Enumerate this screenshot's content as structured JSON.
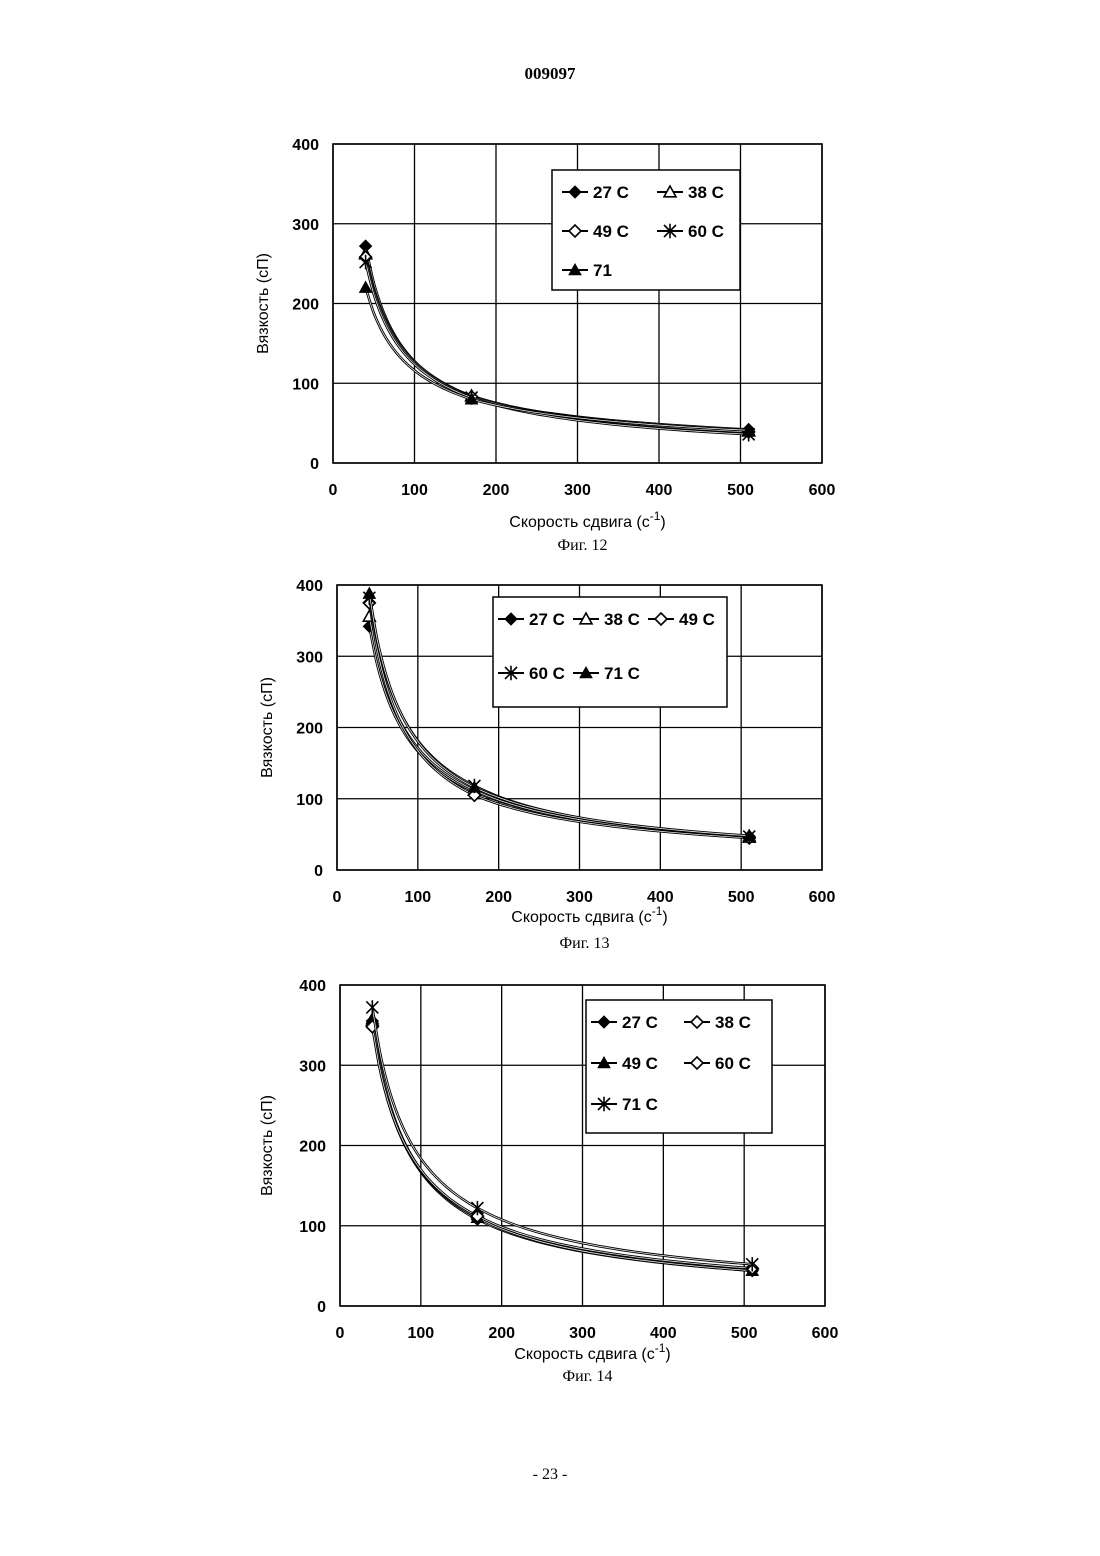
{
  "page": {
    "header": "009097",
    "footer": "- 23 -"
  },
  "chart_data": [
    {
      "type": "line",
      "figure_label": "Фиг. 12",
      "xlabel": "Скорость сдвига (с",
      "xlabel_sup": "-1",
      "xlabel_close": ")",
      "ylabel": "Вязкость (сП)",
      "xlim": [
        0,
        600
      ],
      "ylim": [
        0,
        400
      ],
      "xticks": [
        0,
        100,
        200,
        300,
        400,
        500,
        600
      ],
      "yticks": [
        0,
        100,
        200,
        300,
        400
      ],
      "grid": true,
      "legend_position": "top-right",
      "x": [
        40,
        170,
        510
      ],
      "series": [
        {
          "name": "27 C",
          "marker": "diamond-filled",
          "values": [
            272,
            82,
            42
          ]
        },
        {
          "name": "38 C",
          "marker": "triangle-open",
          "values": [
            262,
            84,
            40
          ]
        },
        {
          "name": "49 C",
          "marker": "diamond-open",
          "values": [
            258,
            83,
            39
          ]
        },
        {
          "name": "60 C",
          "marker": "asterisk",
          "values": [
            252,
            82,
            36
          ]
        },
        {
          "name": "71",
          "marker": "triangle-filled",
          "values": [
            220,
            80,
            41
          ]
        }
      ]
    },
    {
      "type": "line",
      "figure_label": "Фиг. 13",
      "xlabel": "Скорость сдвига (с",
      "xlabel_sup": "-1",
      "xlabel_close": ")",
      "ylabel": "Вязкость (сП)",
      "xlim": [
        0,
        600
      ],
      "ylim": [
        0,
        400
      ],
      "xticks": [
        0,
        100,
        200,
        300,
        400,
        500,
        600
      ],
      "yticks": [
        0,
        100,
        200,
        300,
        400
      ],
      "grid": true,
      "legend_position": "top-right",
      "x": [
        40,
        170,
        510
      ],
      "series": [
        {
          "name": "27 C",
          "marker": "diamond-filled",
          "values": [
            342,
            110,
            47
          ]
        },
        {
          "name": "38 C",
          "marker": "triangle-open",
          "values": [
            356,
            112,
            46
          ]
        },
        {
          "name": "49 C",
          "marker": "diamond-open",
          "values": [
            375,
            105,
            45
          ]
        },
        {
          "name": "60 C",
          "marker": "asterisk",
          "values": [
            382,
            118,
            47
          ]
        },
        {
          "name": "71 C",
          "marker": "triangle-filled",
          "values": [
            388,
            116,
            48
          ]
        }
      ]
    },
    {
      "type": "line",
      "figure_label": "Фиг. 14",
      "xlabel": "Скорость сдвига (с",
      "xlabel_sup": "-1",
      "xlabel_close": ")",
      "ylabel": "Вязкость (сП)",
      "xlim": [
        0,
        600
      ],
      "ylim": [
        0,
        400
      ],
      "xticks": [
        0,
        100,
        200,
        300,
        400,
        500,
        600
      ],
      "yticks": [
        0,
        100,
        200,
        300,
        400
      ],
      "grid": true,
      "legend_position": "top-right",
      "x": [
        40,
        170,
        510
      ],
      "series": [
        {
          "name": "27 C",
          "marker": "diamond-filled",
          "values": [
            355,
            108,
            44
          ]
        },
        {
          "name": "38 C",
          "marker": "diamond-open",
          "values": [
            350,
            110,
            46
          ]
        },
        {
          "name": "49 C",
          "marker": "triangle-filled",
          "values": [
            358,
            110,
            44
          ]
        },
        {
          "name": "60 C",
          "marker": "diamond-open",
          "values": [
            348,
            112,
            47
          ]
        },
        {
          "name": "71 C",
          "marker": "asterisk",
          "values": [
            372,
            122,
            52
          ]
        }
      ]
    }
  ]
}
